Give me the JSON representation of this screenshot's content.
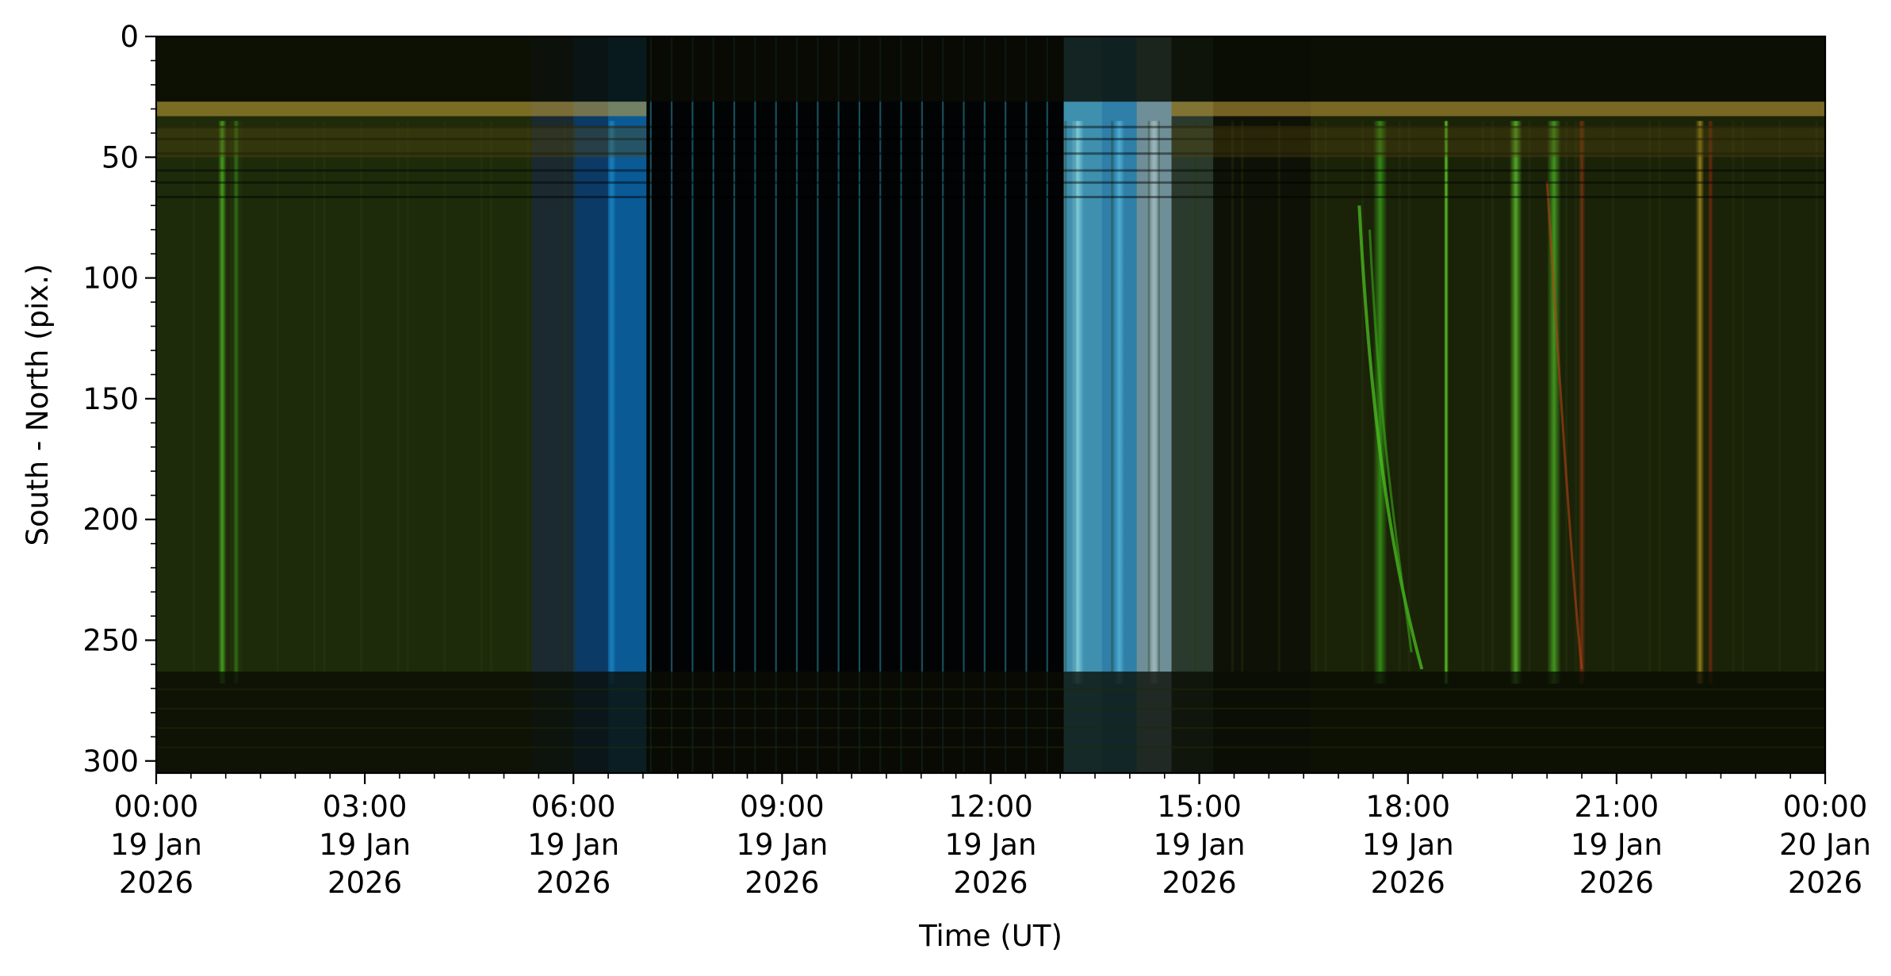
{
  "chart_data": {
    "type": "heatmap",
    "title": "",
    "xlabel": "Time (UT)",
    "ylabel": "South - North (pix.)",
    "ylim": [
      305,
      0
    ],
    "xlim_hours": [
      0,
      24
    ],
    "y_ticks": [
      "0",
      "50",
      "100",
      "150",
      "200",
      "250",
      "300"
    ],
    "y_tick_values": [
      0,
      50,
      100,
      150,
      200,
      250,
      300
    ],
    "x_ticks": [
      {
        "hour": 0,
        "time": "00:00",
        "day": "19 Jan",
        "year": "2026"
      },
      {
        "hour": 3,
        "time": "03:00",
        "day": "19 Jan",
        "year": "2026"
      },
      {
        "hour": 6,
        "time": "06:00",
        "day": "19 Jan",
        "year": "2026"
      },
      {
        "hour": 9,
        "time": "09:00",
        "day": "19 Jan",
        "year": "2026"
      },
      {
        "hour": 12,
        "time": "12:00",
        "day": "19 Jan",
        "year": "2026"
      },
      {
        "hour": 15,
        "time": "15:00",
        "day": "19 Jan",
        "year": "2026"
      },
      {
        "hour": 18,
        "time": "18:00",
        "day": "19 Jan",
        "year": "2026"
      },
      {
        "hour": 21,
        "time": "21:00",
        "day": "19 Jan",
        "year": "2026"
      },
      {
        "hour": 24,
        "time": "00:00",
        "day": "20 Jan",
        "year": "2026"
      }
    ],
    "colors": {
      "background": "#1c2408",
      "aurora_green": "#3f8a1c",
      "twilight_blue": "#0e6aa8",
      "twilight_cyan": "#7fd4e0",
      "aurora_red": "#9a3010",
      "dark": "#0a0c05",
      "horizon_band": "#c9a23c"
    },
    "segments": [
      {
        "start": 0.0,
        "end": 5.4,
        "color": "#1e2b0a"
      },
      {
        "start": 5.4,
        "end": 6.0,
        "color": "#1a2a30"
      },
      {
        "start": 6.0,
        "end": 6.5,
        "color": "#0c3a66"
      },
      {
        "start": 6.5,
        "end": 7.05,
        "color": "#0a5a96"
      },
      {
        "start": 7.05,
        "end": 13.05,
        "color": "#020304"
      },
      {
        "start": 13.05,
        "end": 13.6,
        "color": "#3f8fae"
      },
      {
        "start": 13.6,
        "end": 14.1,
        "color": "#2f7fa8"
      },
      {
        "start": 14.1,
        "end": 14.6,
        "color": "#6f8f98"
      },
      {
        "start": 14.6,
        "end": 15.2,
        "color": "#2a3a2c"
      },
      {
        "start": 15.2,
        "end": 16.6,
        "color": "#0e1206"
      },
      {
        "start": 16.6,
        "end": 24.0,
        "color": "#1a2308"
      }
    ],
    "bright_streaks": [
      {
        "hour": 0.95,
        "color": "#4caf24",
        "intensity": 0.85,
        "width": 0.12
      },
      {
        "hour": 1.15,
        "color": "#3c9a1c",
        "intensity": 0.6,
        "width": 0.1
      },
      {
        "hour": 6.55,
        "color": "#1a86c8",
        "intensity": 0.9,
        "width": 0.12
      },
      {
        "hour": 13.25,
        "color": "#8ad8e8",
        "intensity": 0.8,
        "width": 0.18
      },
      {
        "hour": 13.85,
        "color": "#5cc0e0",
        "intensity": 0.7,
        "width": 0.15
      },
      {
        "hour": 14.35,
        "color": "#b0c8cc",
        "intensity": 0.7,
        "width": 0.15
      },
      {
        "hour": 17.6,
        "color": "#3aa81a",
        "intensity": 0.75,
        "width": 0.2
      },
      {
        "hour": 18.55,
        "color": "#5cd024",
        "intensity": 0.95,
        "width": 0.06
      },
      {
        "hour": 19.55,
        "color": "#5cc02a",
        "intensity": 0.85,
        "width": 0.18
      },
      {
        "hour": 20.1,
        "color": "#4cb024",
        "intensity": 0.8,
        "width": 0.2
      },
      {
        "hour": 20.5,
        "color": "#a83a12",
        "intensity": 0.6,
        "width": 0.1
      },
      {
        "hour": 22.2,
        "color": "#c8a020",
        "intensity": 0.7,
        "width": 0.12
      },
      {
        "hour": 22.35,
        "color": "#a02a10",
        "intensity": 0.6,
        "width": 0.08
      }
    ],
    "night_sky_lines_hours": [
      7.1,
      7.4,
      7.7,
      8.0,
      8.3,
      8.6,
      8.9,
      9.2,
      9.5,
      9.8,
      10.1,
      10.4,
      10.7,
      11.0,
      11.3,
      11.6,
      11.9,
      12.2,
      12.5,
      12.8
    ],
    "horizon_band_rows": [
      27,
      33
    ],
    "lower_dark_band_rows": [
      263,
      305
    ],
    "upper_dark_band_rows": [
      0,
      27
    ]
  }
}
